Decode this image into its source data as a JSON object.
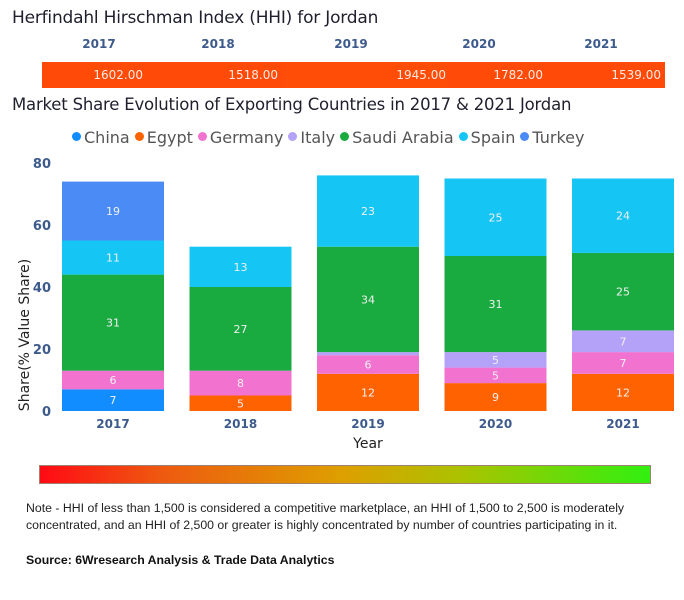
{
  "hhi": {
    "title": "Herfindahl Hirschman Index (HHI) for Jordan",
    "years": [
      "2017",
      "2018",
      "2019",
      "2020",
      "2021"
    ],
    "values": [
      "1602.00",
      "1518.00",
      "1945.00",
      "1782.00",
      "1539.00"
    ],
    "bar_color": "#ff4a08"
  },
  "chart_data": {
    "type": "bar",
    "stacked": true,
    "title": "Market Share Evolution of Exporting Countries in 2017 & 2021 Jordan",
    "xlabel": "Year",
    "ylabel": "Share(% Value Share)",
    "ylim": [
      0,
      80
    ],
    "yticks": [
      "0",
      "20",
      "40",
      "60",
      "80"
    ],
    "categories": [
      "2017",
      "2018",
      "2019",
      "2020",
      "2021"
    ],
    "legend_position": "top",
    "grid": false,
    "series": [
      {
        "name": "China",
        "color": "#118dff",
        "values": [
          7,
          0,
          0,
          0,
          0
        ],
        "labels": [
          "7",
          "",
          "",
          "",
          ""
        ]
      },
      {
        "name": "Egypt",
        "color": "#ff6200",
        "values": [
          0,
          5,
          12,
          9,
          12
        ],
        "labels": [
          "",
          "5",
          "12",
          "9",
          "12"
        ]
      },
      {
        "name": "Germany",
        "color": "#f272d0",
        "values": [
          6,
          8,
          6,
          5,
          7
        ],
        "labels": [
          "6",
          "8",
          "6",
          "5",
          "7"
        ]
      },
      {
        "name": "Italy",
        "color": "#b4a2f9",
        "values": [
          0,
          0,
          1,
          5,
          7
        ],
        "labels": [
          "",
          "",
          "",
          "5",
          "7"
        ]
      },
      {
        "name": "Saudi Arabia",
        "color": "#1aab40",
        "values": [
          31,
          27,
          34,
          31,
          25
        ],
        "labels": [
          "31",
          "27",
          "34",
          "31",
          "25"
        ]
      },
      {
        "name": "Spain",
        "color": "#15c6f4",
        "values": [
          11,
          13,
          23,
          25,
          24
        ],
        "labels": [
          "11",
          "13",
          "23",
          "25",
          "24"
        ]
      },
      {
        "name": "Turkey",
        "color": "#4a8bf5",
        "values": [
          19,
          0,
          0,
          0,
          0
        ],
        "labels": [
          "19",
          "",
          "",
          "",
          ""
        ]
      }
    ]
  },
  "footer": {
    "note": "Note - HHI of less than 1,500 is considered a competitive marketplace, an HHI of 1,500 to 2,500 is moderately concentrated, and an HHI of 2,500 or greater is highly concentrated by number of countries participating in it.",
    "source": "Source: 6Wresearch Analysis & Trade Data Analytics"
  }
}
